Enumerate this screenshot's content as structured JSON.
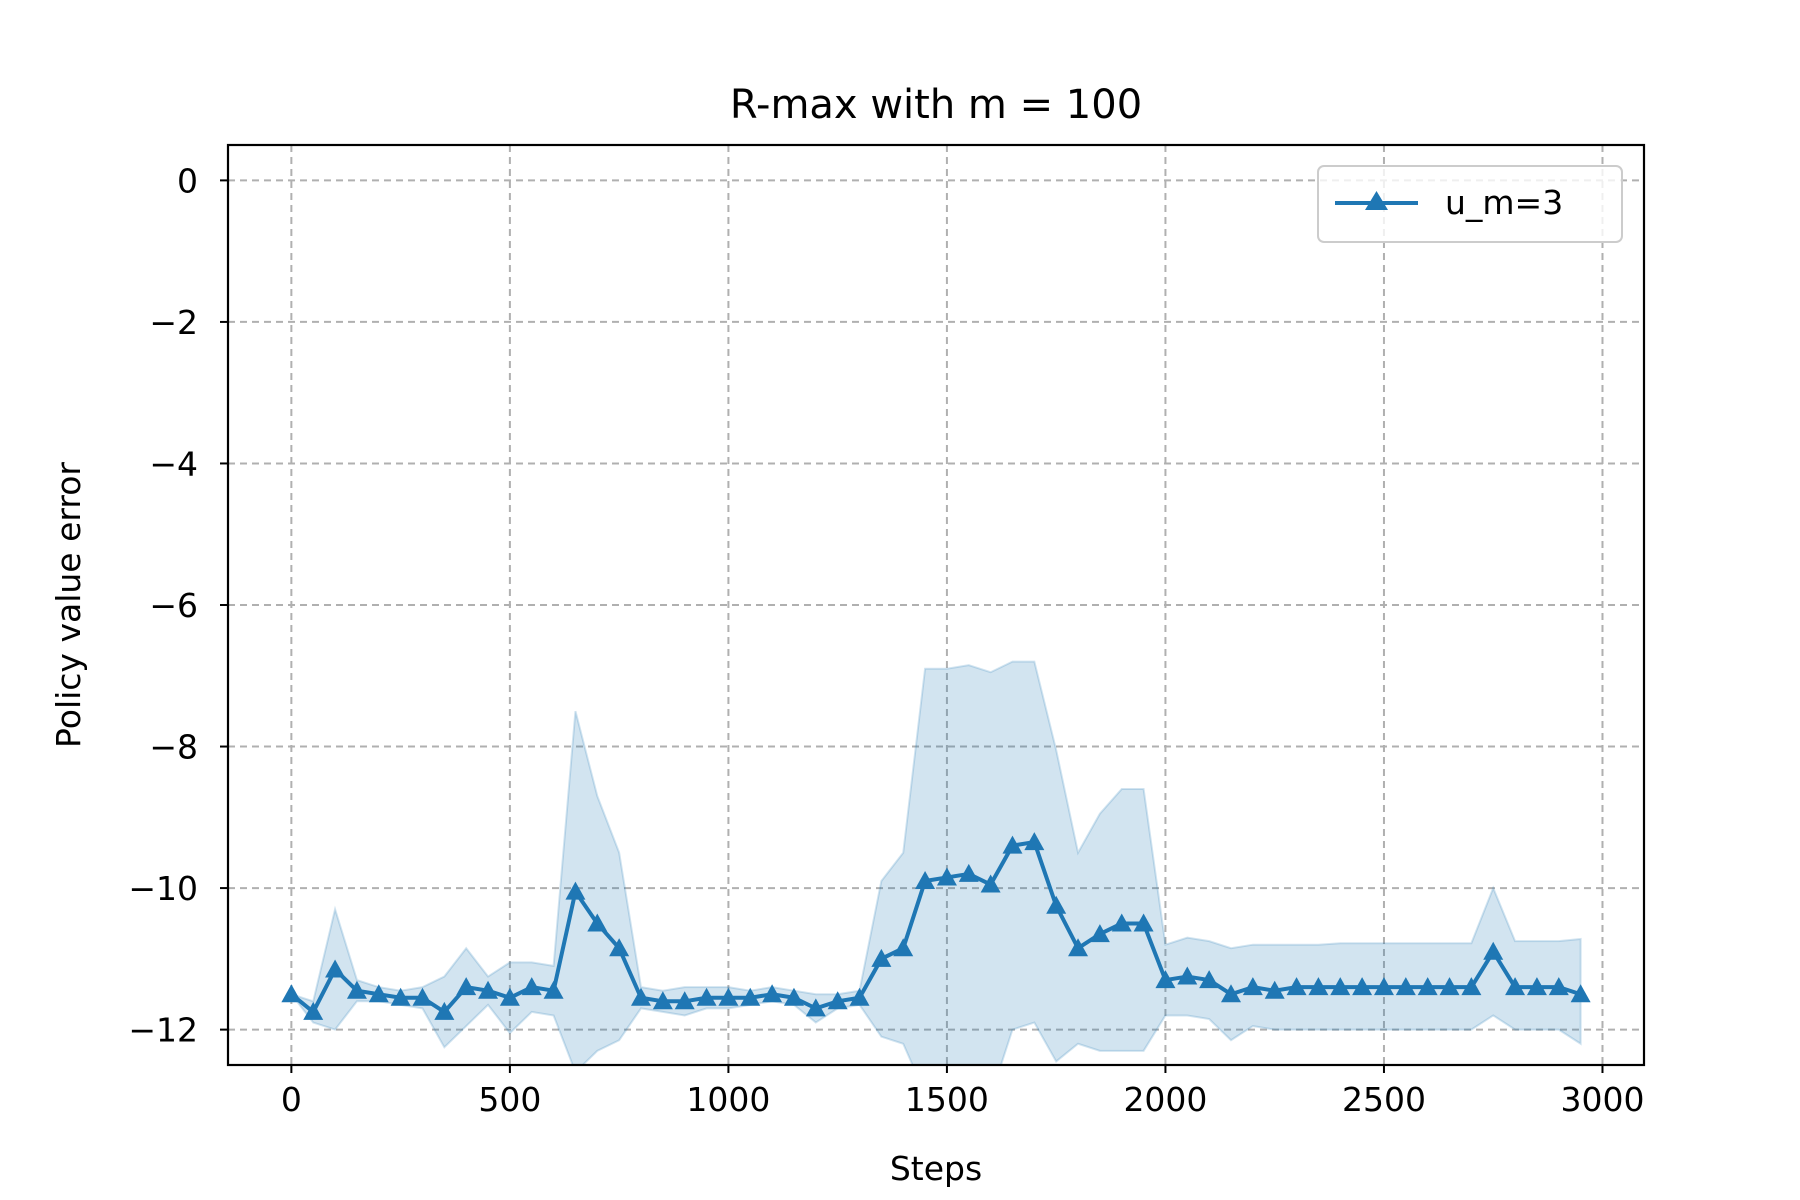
{
  "chart_data": {
    "type": "line",
    "title": "R-max with m = 100",
    "xlabel": "Steps",
    "ylabel": "Policy value error",
    "xlim": [
      -145,
      3095
    ],
    "ylim": [
      -12.5,
      0.5
    ],
    "xticks": [
      0,
      500,
      1000,
      1500,
      2000,
      2500,
      3000
    ],
    "xtick_labels": [
      "0",
      "500",
      "1000",
      "1500",
      "2000",
      "2500",
      "3000"
    ],
    "yticks": [
      0,
      -2,
      -4,
      -6,
      -8,
      -10,
      -12
    ],
    "ytick_labels": [
      "0",
      "−2",
      "−4",
      "−6",
      "−8",
      "−10",
      "−12"
    ],
    "grid": true,
    "legend_position": "top-right",
    "colors": {
      "line": "#1f77b4",
      "band": "#1f77b4"
    },
    "series": [
      {
        "name": "u_m=3",
        "marker": "triangle-up",
        "x": [
          0,
          50,
          100,
          150,
          200,
          250,
          300,
          350,
          400,
          450,
          500,
          550,
          600,
          650,
          700,
          750,
          800,
          850,
          900,
          950,
          1000,
          1050,
          1100,
          1150,
          1200,
          1250,
          1300,
          1350,
          1400,
          1450,
          1500,
          1550,
          1600,
          1650,
          1700,
          1750,
          1800,
          1850,
          1900,
          1950,
          2000,
          2050,
          2100,
          2150,
          2200,
          2250,
          2300,
          2350,
          2400,
          2450,
          2500,
          2550,
          2600,
          2650,
          2700,
          2750,
          2800,
          2850,
          2900,
          2950
        ],
        "y": [
          -11.5,
          -11.75,
          -11.15,
          -11.45,
          -11.5,
          -11.55,
          -11.55,
          -11.75,
          -11.4,
          -11.45,
          -11.55,
          -11.4,
          -11.45,
          -10.05,
          -10.5,
          -10.85,
          -11.55,
          -11.6,
          -11.6,
          -11.55,
          -11.55,
          -11.55,
          -11.5,
          -11.55,
          -11.7,
          -11.6,
          -11.55,
          -11.0,
          -10.85,
          -9.9,
          -9.85,
          -9.8,
          -9.95,
          -9.4,
          -9.35,
          -10.25,
          -10.85,
          -10.65,
          -10.5,
          -10.5,
          -11.3,
          -11.25,
          -11.3,
          -11.5,
          -11.4,
          -11.45,
          -11.4,
          -11.4,
          -11.4,
          -11.4,
          -11.4,
          -11.4,
          -11.4,
          -11.4,
          -11.4,
          -10.9,
          -11.4,
          -11.4,
          -11.4,
          -11.5
        ],
        "upper": [
          -11.5,
          -11.6,
          -10.3,
          -11.3,
          -11.4,
          -11.45,
          -11.4,
          -11.25,
          -10.85,
          -11.25,
          -11.05,
          -11.05,
          -11.1,
          -7.5,
          -8.7,
          -9.5,
          -11.4,
          -11.45,
          -11.4,
          -11.4,
          -11.4,
          -11.45,
          -11.4,
          -11.45,
          -11.5,
          -11.5,
          -11.45,
          -9.9,
          -9.5,
          -6.9,
          -6.9,
          -6.85,
          -6.95,
          -6.8,
          -6.8,
          -8.05,
          -9.5,
          -8.95,
          -8.6,
          -8.6,
          -10.8,
          -10.7,
          -10.75,
          -10.85,
          -10.8,
          -10.8,
          -10.8,
          -10.8,
          -10.78,
          -10.78,
          -10.78,
          -10.78,
          -10.78,
          -10.78,
          -10.78,
          -10.0,
          -10.75,
          -10.75,
          -10.75,
          -10.72
        ],
        "lower": [
          -11.5,
          -11.9,
          -12.0,
          -11.6,
          -11.6,
          -11.65,
          -11.7,
          -12.25,
          -11.95,
          -11.65,
          -12.05,
          -11.75,
          -11.8,
          -12.6,
          -12.3,
          -12.15,
          -11.7,
          -11.75,
          -11.8,
          -11.7,
          -11.7,
          -11.65,
          -11.6,
          -11.65,
          -11.9,
          -11.7,
          -11.65,
          -12.1,
          -12.2,
          -12.9,
          -12.8,
          -12.75,
          -12.95,
          -12.0,
          -11.9,
          -12.45,
          -12.2,
          -12.3,
          -12.3,
          -12.3,
          -11.8,
          -11.8,
          -11.85,
          -12.15,
          -11.95,
          -12.0,
          -12.0,
          -12.0,
          -12.0,
          -12.0,
          -12.0,
          -12.0,
          -12.0,
          -12.0,
          -12.0,
          -11.8,
          -12.0,
          -12.0,
          -12.0,
          -12.2
        ]
      }
    ]
  }
}
